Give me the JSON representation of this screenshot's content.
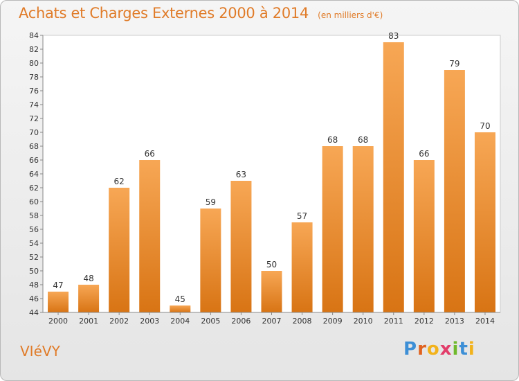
{
  "header": {
    "title": "Achats et Charges Externes 2000 à 2014",
    "unit": "(en milliers d'€)"
  },
  "commune": "VIéVY",
  "logo": {
    "text": "Proxiti",
    "letters": [
      "P",
      "r",
      "o",
      "x",
      "i",
      "t",
      "i"
    ]
  },
  "colors": {
    "bar_top": "#f7a755",
    "bar_bottom": "#d87414",
    "accent": "#e07b28"
  },
  "chart_data": {
    "type": "bar",
    "title": "Achats et Charges Externes 2000 à 2014",
    "subtitle": "(en milliers d'€)",
    "xlabel": "",
    "ylabel": "",
    "categories": [
      "2000",
      "2001",
      "2002",
      "2003",
      "2004",
      "2005",
      "2006",
      "2007",
      "2008",
      "2009",
      "2010",
      "2011",
      "2012",
      "2013",
      "2014"
    ],
    "values": [
      47,
      48,
      62,
      66,
      45,
      59,
      63,
      50,
      57,
      68,
      68,
      83,
      66,
      79,
      70
    ],
    "ylim": [
      44,
      84
    ],
    "yticks": [
      44,
      46,
      48,
      50,
      52,
      54,
      56,
      58,
      60,
      62,
      64,
      66,
      68,
      70,
      72,
      74,
      76,
      78,
      80,
      82,
      84
    ],
    "grid": false,
    "legend": "none"
  }
}
